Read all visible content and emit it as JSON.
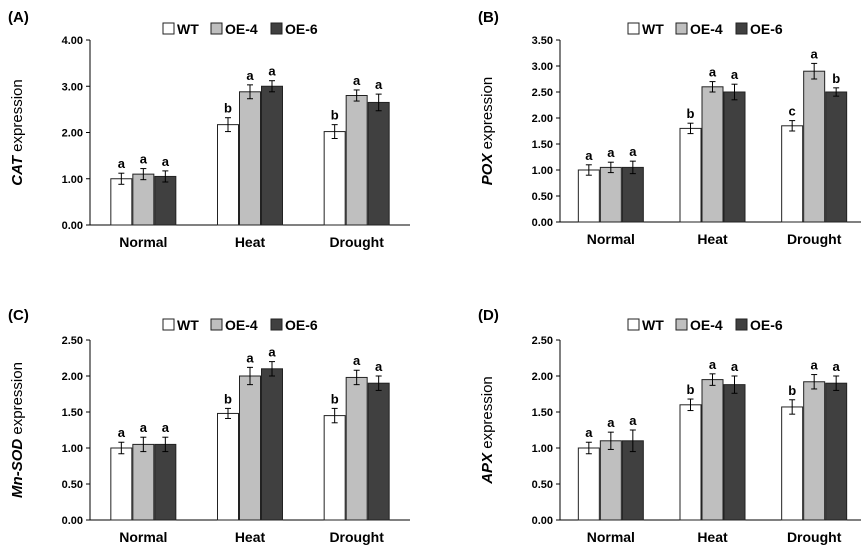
{
  "legend": {
    "items": [
      {
        "name": "WT",
        "color": "#ffffff"
      },
      {
        "name": "OE-4",
        "color": "#bfbfbf"
      },
      {
        "name": "OE-6",
        "color": "#404040"
      }
    ]
  },
  "chart_data": [
    {
      "type": "bar",
      "panel": "(A)",
      "ylabel_italic": "CAT",
      "ylabel_rest": " expression",
      "categories": [
        "Normal",
        "Heat",
        "Drought"
      ],
      "yticks": [
        "0.00",
        "1.00",
        "2.00",
        "3.00",
        "4.00"
      ],
      "ylim": [
        0,
        4.0
      ],
      "series": [
        {
          "name": "WT",
          "values": [
            1.0,
            2.17,
            2.02
          ],
          "errors": [
            0.12,
            0.15,
            0.15
          ],
          "sig": [
            "a",
            "b",
            "b"
          ]
        },
        {
          "name": "OE-4",
          "values": [
            1.1,
            2.88,
            2.8
          ],
          "errors": [
            0.12,
            0.15,
            0.12
          ],
          "sig": [
            "a",
            "a",
            "a"
          ]
        },
        {
          "name": "OE-6",
          "values": [
            1.05,
            3.0,
            2.65
          ],
          "errors": [
            0.12,
            0.12,
            0.18
          ],
          "sig": [
            "a",
            "a",
            "a"
          ]
        }
      ],
      "legend_position": "top"
    },
    {
      "type": "bar",
      "panel": "(B)",
      "ylabel_italic": "POX",
      "ylabel_rest": " expression",
      "categories": [
        "Normal",
        "Heat",
        "Drought"
      ],
      "yticks": [
        "0.00",
        "0.50",
        "1.00",
        "1.50",
        "2.00",
        "2.50",
        "3.00",
        "3.50"
      ],
      "ylim": [
        0,
        3.5
      ],
      "series": [
        {
          "name": "WT",
          "values": [
            1.0,
            1.8,
            1.85
          ],
          "errors": [
            0.1,
            0.1,
            0.1
          ],
          "sig": [
            "a",
            "b",
            "c"
          ]
        },
        {
          "name": "OE-4",
          "values": [
            1.05,
            2.6,
            2.9
          ],
          "errors": [
            0.1,
            0.1,
            0.15
          ],
          "sig": [
            "a",
            "a",
            "a"
          ]
        },
        {
          "name": "OE-6",
          "values": [
            1.05,
            2.5,
            2.5
          ],
          "errors": [
            0.12,
            0.15,
            0.08
          ],
          "sig": [
            "a",
            "a",
            "b"
          ]
        }
      ],
      "legend_position": "top"
    },
    {
      "type": "bar",
      "panel": "(C)",
      "ylabel_italic": "Mn-SOD",
      "ylabel_rest": " expression",
      "categories": [
        "Normal",
        "Heat",
        "Drought"
      ],
      "yticks": [
        "0.00",
        "0.50",
        "1.00",
        "1.50",
        "2.00",
        "2.50"
      ],
      "ylim": [
        0,
        2.5
      ],
      "series": [
        {
          "name": "WT",
          "values": [
            1.0,
            1.48,
            1.45
          ],
          "errors": [
            0.08,
            0.07,
            0.1
          ],
          "sig": [
            "a",
            "b",
            "b"
          ]
        },
        {
          "name": "OE-4",
          "values": [
            1.05,
            2.0,
            1.98
          ],
          "errors": [
            0.1,
            0.12,
            0.1
          ],
          "sig": [
            "a",
            "a",
            "a"
          ]
        },
        {
          "name": "OE-6",
          "values": [
            1.05,
            2.1,
            1.9
          ],
          "errors": [
            0.1,
            0.1,
            0.1
          ],
          "sig": [
            "a",
            "a",
            "a"
          ]
        }
      ],
      "legend_position": "top"
    },
    {
      "type": "bar",
      "panel": "(D)",
      "ylabel_italic": "APX",
      "ylabel_rest": " expression",
      "categories": [
        "Normal",
        "Heat",
        "Drought"
      ],
      "yticks": [
        "0.00",
        "0.50",
        "1.00",
        "1.50",
        "2.00",
        "2.50"
      ],
      "ylim": [
        0,
        2.5
      ],
      "series": [
        {
          "name": "WT",
          "values": [
            1.0,
            1.6,
            1.57
          ],
          "errors": [
            0.08,
            0.08,
            0.1
          ],
          "sig": [
            "a",
            "b",
            "b"
          ]
        },
        {
          "name": "OE-4",
          "values": [
            1.1,
            1.95,
            1.92
          ],
          "errors": [
            0.12,
            0.08,
            0.1
          ],
          "sig": [
            "a",
            "a",
            "a"
          ]
        },
        {
          "name": "OE-6",
          "values": [
            1.1,
            1.88,
            1.9
          ],
          "errors": [
            0.15,
            0.12,
            0.1
          ],
          "sig": [
            "a",
            "a",
            "a"
          ]
        }
      ],
      "legend_position": "top"
    }
  ]
}
